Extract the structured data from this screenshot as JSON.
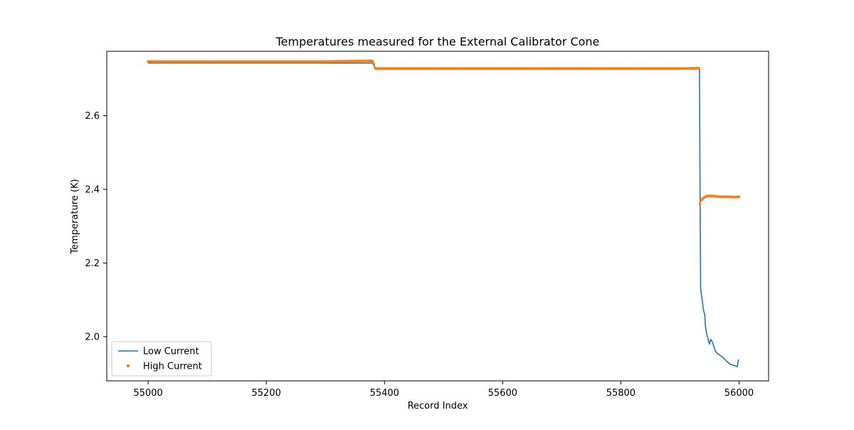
{
  "chart_data": {
    "type": "line",
    "title": "Temperatures measured for the External Calibrator Cone",
    "xlabel": "Record Index",
    "ylabel": "Temperature (K)",
    "xlim": [
      54930,
      56050
    ],
    "ylim": [
      1.88,
      2.775
    ],
    "xticks": [
      55000,
      55200,
      55400,
      55600,
      55800,
      56000
    ],
    "yticks": [
      2.0,
      2.2,
      2.4,
      2.6
    ],
    "xtick_labels": [
      "55000",
      "55200",
      "55400",
      "55600",
      "55800",
      "56000"
    ],
    "ytick_labels": [
      "2.0",
      "2.2",
      "2.4",
      "2.6"
    ],
    "grid": false,
    "legend_position": "lower-left",
    "series": [
      {
        "name": "Low Current",
        "style": "line",
        "color": "#1f77b4",
        "x": [
          55000,
          55100,
          55200,
          55380,
          55382,
          55384,
          55386,
          55500,
          55700,
          55900,
          55933,
          55934,
          55935,
          55938,
          55940,
          55942,
          55943,
          55945,
          55948,
          55950,
          55952,
          55955,
          55960,
          55965,
          55970,
          55975,
          55980,
          55985,
          55990,
          55995,
          55997,
          55999
        ],
        "y": [
          2.743,
          2.743,
          2.743,
          2.743,
          2.738,
          2.73,
          2.726,
          2.726,
          2.726,
          2.726,
          2.727,
          2.4,
          2.13,
          2.095,
          2.07,
          2.06,
          2.03,
          2.01,
          1.99,
          1.98,
          1.993,
          1.985,
          1.96,
          1.952,
          1.947,
          1.94,
          1.932,
          1.925,
          1.923,
          1.92,
          1.918,
          1.938
        ]
      },
      {
        "name": "High Current",
        "style": "markers",
        "color": "#ff7f0e",
        "x": [
          55000,
          55100,
          55200,
          55300,
          55378,
          55380,
          55382,
          55384,
          55386,
          55500,
          55600,
          55700,
          55800,
          55900,
          55932,
          55934,
          55936,
          55938,
          55940,
          55942,
          55944,
          55946,
          55950,
          55955,
          55960,
          55970,
          55980,
          55990,
          55995,
          55998,
          56000
        ],
        "y": [
          2.747,
          2.747,
          2.747,
          2.747,
          2.749,
          2.747,
          2.74,
          2.73,
          2.728,
          2.728,
          2.728,
          2.728,
          2.728,
          2.728,
          2.729,
          2.36,
          2.37,
          2.374,
          2.377,
          2.379,
          2.381,
          2.382,
          2.382,
          2.382,
          2.381,
          2.38,
          2.38,
          2.379,
          2.379,
          2.38,
          2.38
        ]
      }
    ]
  }
}
